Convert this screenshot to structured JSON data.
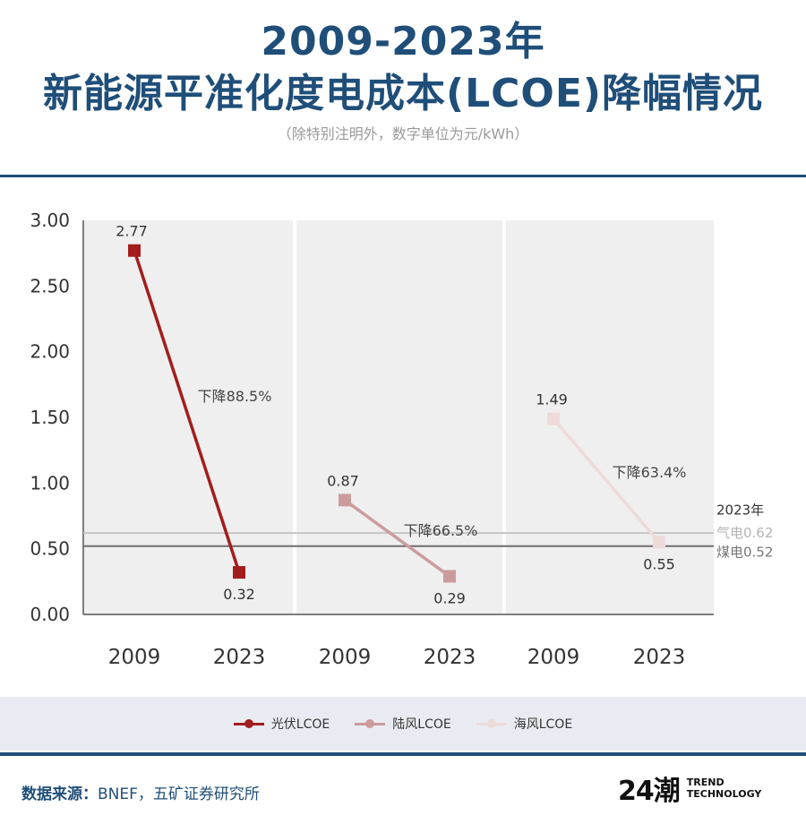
{
  "header": {
    "title_line1": "2009-2023年",
    "title_line2": "新能源平准化度电成本(LCOE)降幅情况",
    "subtitle": "（除特别注明外，数字单位为元/kWh）"
  },
  "chart_data": {
    "type": "line",
    "ylim": [
      0,
      3
    ],
    "yticks": [
      "3.00",
      "2.50",
      "2.00",
      "1.50",
      "1.00",
      "0.50",
      "0.00"
    ],
    "ytick_values": [
      3,
      2.5,
      2,
      1.5,
      1,
      0.5,
      0
    ],
    "grid": false,
    "panels": [
      {
        "name": "光伏LCOE",
        "color": "#a31d1d",
        "x": [
          "2009",
          "2023"
        ],
        "values": [
          2.77,
          0.32
        ],
        "value_labels": [
          "2.77",
          "0.32"
        ],
        "annotation": "下降88.5%"
      },
      {
        "name": "陆风LCOE",
        "color": "#cc9c9c",
        "x": [
          "2009",
          "2023"
        ],
        "values": [
          0.87,
          0.29
        ],
        "value_labels": [
          "0.87",
          "0.29"
        ],
        "annotation": "下降66.5%"
      },
      {
        "name": "海风LCOE",
        "color": "#efdada",
        "x": [
          "2009",
          "2023"
        ],
        "values": [
          1.49,
          0.55
        ],
        "value_labels": [
          "1.49",
          "0.55"
        ],
        "annotation": "下降63.4%"
      }
    ],
    "reference_title": "2023年",
    "reference_lines": [
      {
        "label": "气电0.62",
        "value": 0.62,
        "color": "#c4c4c4"
      },
      {
        "label": "煤电0.52",
        "value": 0.52,
        "color": "#6e6e6e"
      }
    ],
    "legend": [
      "光伏LCOE",
      "陆风LCOE",
      "海风LCOE"
    ],
    "legend_position": "bottom-center"
  },
  "footer": {
    "source_label": "数据来源：",
    "source_text": "BNEF，五矿证券研究所",
    "logo_mark": "24潮",
    "logo_line1": "TREND",
    "logo_line2": "TECHNOLOGY"
  }
}
